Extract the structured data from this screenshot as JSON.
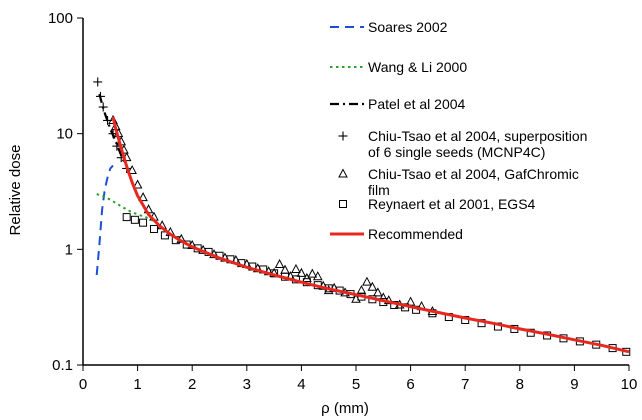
{
  "chart_data": {
    "type": "scatter",
    "xlabel": "ρ (mm)",
    "ylabel": "Relative dose",
    "xlim": [
      0,
      10
    ],
    "ylim": [
      0.1,
      100
    ],
    "y_scale": "log",
    "x_ticks": [
      "0",
      "1",
      "2",
      "3",
      "4",
      "5",
      "6",
      "7",
      "8",
      "9",
      "10"
    ],
    "y_ticks": [
      "0.1",
      "1",
      "10",
      "100"
    ],
    "grid": false,
    "legend_position": "top-right",
    "series": [
      {
        "name": "Soares 2002",
        "kind": "line",
        "style": "dashed",
        "color": "#1a4fd6",
        "x": [
          0.25,
          0.3,
          0.35,
          0.4,
          0.45,
          0.5,
          0.55
        ],
        "y": [
          0.6,
          1.1,
          2.2,
          3.3,
          4.2,
          5.0,
          5.3
        ]
      },
      {
        "name": "Wang & Li 2000",
        "kind": "line",
        "style": "dotted",
        "color": "#2ca02c",
        "x": [
          0.25,
          0.4,
          0.55,
          0.7,
          0.85,
          1.0,
          1.15,
          1.3
        ],
        "y": [
          3.0,
          2.85,
          2.6,
          2.35,
          2.15,
          2.0,
          1.9,
          1.75
        ]
      },
      {
        "name": "Patel  et al  2004",
        "kind": "line",
        "style": "dashdot",
        "color": "#000000",
        "x": [
          0.3,
          0.35,
          0.4,
          0.5,
          0.6,
          0.7,
          0.8
        ],
        "y": [
          22,
          18,
          15,
          11,
          8.5,
          6.5,
          5.2
        ]
      },
      {
        "name": "Chiu-Tsao et al 2004, superposition of 6 single seeds (MCNP4C)",
        "kind": "marker",
        "marker": "plus",
        "color": "#000000",
        "x": [
          0.27,
          0.32,
          0.37,
          0.45,
          0.55,
          0.62,
          0.7,
          0.8
        ],
        "y": [
          28,
          21,
          17,
          13,
          10,
          7.8,
          6.2,
          5.0
        ]
      },
      {
        "name": "Chiu-Tsao et al 2004, GafChromic film",
        "kind": "marker",
        "marker": "triangle",
        "color": "#000000",
        "x": [
          0.55,
          0.6,
          0.65,
          0.7,
          0.75,
          0.8,
          0.9,
          1.0,
          1.1,
          1.2,
          1.3,
          1.45,
          1.6,
          1.8,
          2.0,
          2.2,
          2.4,
          2.6,
          2.8,
          3.0,
          3.2,
          3.4,
          3.5,
          3.6,
          3.7,
          3.8,
          3.9,
          4.0,
          4.1,
          4.2,
          4.3,
          4.4,
          4.5,
          4.6,
          4.8,
          5.0,
          5.1,
          5.2,
          5.3,
          5.4,
          5.5,
          5.6,
          5.8,
          6.0,
          6.2,
          6.4
        ],
        "y": [
          13,
          11.5,
          10,
          8.5,
          7.2,
          6.2,
          4.8,
          3.6,
          2.8,
          2.2,
          1.9,
          1.6,
          1.4,
          1.22,
          1.08,
          0.98,
          0.9,
          0.84,
          0.8,
          0.74,
          0.68,
          0.64,
          0.62,
          0.74,
          0.66,
          0.58,
          0.67,
          0.62,
          0.56,
          0.61,
          0.58,
          0.48,
          0.44,
          0.46,
          0.42,
          0.37,
          0.44,
          0.52,
          0.47,
          0.42,
          0.38,
          0.36,
          0.33,
          0.35,
          0.32,
          0.29
        ]
      },
      {
        "name": "Reynaert et al 2001, EGS4",
        "kind": "marker",
        "marker": "square",
        "color": "#000000",
        "x": [
          0.8,
          0.95,
          1.1,
          1.3,
          1.5,
          1.7,
          1.9,
          2.1,
          2.3,
          2.5,
          2.7,
          2.9,
          3.1,
          3.3,
          3.5,
          3.7,
          3.9,
          4.1,
          4.3,
          4.5,
          4.7,
          4.9,
          5.1,
          5.3,
          5.5,
          5.7,
          5.9,
          6.1,
          6.4,
          6.7,
          7.0,
          7.3,
          7.6,
          7.9,
          8.2,
          8.5,
          8.8,
          9.1,
          9.4,
          9.7,
          9.95
        ],
        "y": [
          1.9,
          1.8,
          1.7,
          1.5,
          1.32,
          1.2,
          1.1,
          1.02,
          0.95,
          0.88,
          0.82,
          0.76,
          0.71,
          0.67,
          0.62,
          0.58,
          0.55,
          0.52,
          0.49,
          0.46,
          0.44,
          0.41,
          0.39,
          0.37,
          0.35,
          0.33,
          0.315,
          0.3,
          0.28,
          0.26,
          0.245,
          0.23,
          0.215,
          0.205,
          0.19,
          0.18,
          0.17,
          0.16,
          0.15,
          0.14,
          0.13
        ]
      },
      {
        "name": "Recommended",
        "kind": "line",
        "style": "solid",
        "color": "#e8281e",
        "x": [
          0.55,
          0.6,
          0.7,
          0.8,
          0.9,
          1.0,
          1.2,
          1.4,
          1.6,
          1.8,
          2.0,
          2.5,
          3.0,
          3.5,
          4.0,
          4.5,
          5.0,
          5.5,
          6.0,
          6.5,
          7.0,
          7.5,
          8.0,
          8.5,
          9.0,
          9.5,
          10.0
        ],
        "y": [
          14,
          11,
          7.5,
          5.2,
          3.8,
          2.9,
          2.0,
          1.6,
          1.35,
          1.18,
          1.05,
          0.84,
          0.7,
          0.6,
          0.52,
          0.455,
          0.405,
          0.36,
          0.32,
          0.285,
          0.255,
          0.23,
          0.205,
          0.185,
          0.165,
          0.148,
          0.13
        ]
      }
    ]
  }
}
